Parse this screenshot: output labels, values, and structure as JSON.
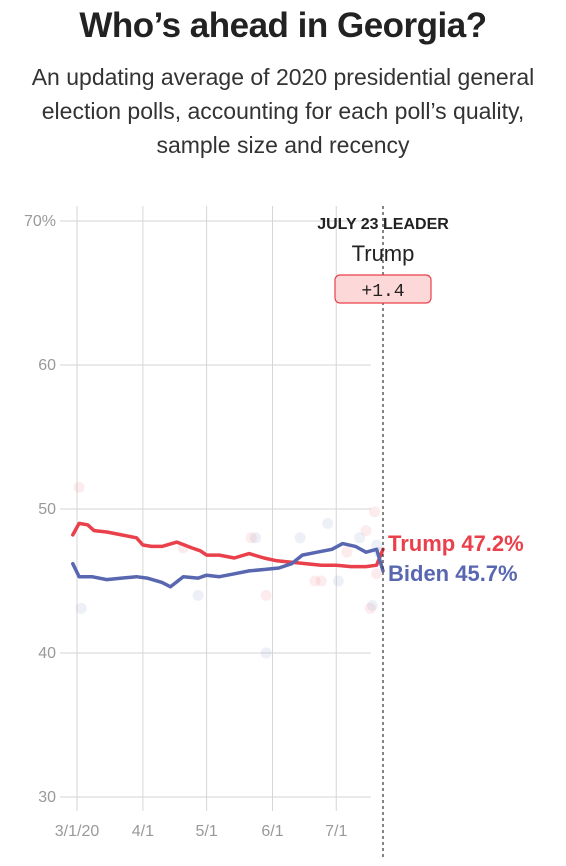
{
  "header": {
    "title": "Who’s ahead in Georgia?",
    "subtitle": "An updating average of 2020 presidential general election polls, accounting for each poll’s quality, sample size and recency"
  },
  "leader": {
    "heading": "JULY 23 LEADER",
    "name": "Trump",
    "margin": "+1.4"
  },
  "end_labels": {
    "trump": "Trump 47.2%",
    "biden": "Biden 45.7%"
  },
  "colors": {
    "trump": "#e9404b",
    "biden": "#5867b0",
    "grid": "#d6d6d6",
    "leader_box_fill": "#fdd8d8",
    "leader_box_stroke": "#e9404b"
  },
  "chart_data": {
    "type": "line",
    "title": "",
    "xlabel": "",
    "ylabel": "",
    "ylim": [
      30,
      70
    ],
    "y_ticks": [
      {
        "value": 70,
        "label": "70%"
      },
      {
        "value": 60,
        "label": "60"
      },
      {
        "value": 50,
        "label": "50"
      },
      {
        "value": 40,
        "label": "40"
      },
      {
        "value": 30,
        "label": "30"
      }
    ],
    "x_ticks": [
      {
        "date": "2020-03-01",
        "label": "3/1/20"
      },
      {
        "date": "2020-04-01",
        "label": "4/1"
      },
      {
        "date": "2020-05-01",
        "label": "5/1"
      },
      {
        "date": "2020-06-01",
        "label": "6/1"
      },
      {
        "date": "2020-07-01",
        "label": "7/1"
      }
    ],
    "xlim": [
      "2020-02-22",
      "2020-07-23"
    ],
    "marker_date": "2020-07-23",
    "grid": true,
    "series": [
      {
        "name": "Trump",
        "final_value": 47.2,
        "x": [
          "2020-02-28",
          "2020-03-02",
          "2020-03-06",
          "2020-03-09",
          "2020-03-15",
          "2020-03-22",
          "2020-03-29",
          "2020-04-01",
          "2020-04-05",
          "2020-04-10",
          "2020-04-17",
          "2020-04-24",
          "2020-04-28",
          "2020-05-01",
          "2020-05-07",
          "2020-05-14",
          "2020-05-21",
          "2020-05-28",
          "2020-06-03",
          "2020-06-10",
          "2020-06-17",
          "2020-06-24",
          "2020-07-01",
          "2020-07-08",
          "2020-07-15",
          "2020-07-20",
          "2020-07-23"
        ],
        "values": [
          48.2,
          49.0,
          48.9,
          48.5,
          48.4,
          48.2,
          48.0,
          47.5,
          47.4,
          47.4,
          47.7,
          47.3,
          47.1,
          46.8,
          46.8,
          46.6,
          46.9,
          46.6,
          46.4,
          46.3,
          46.2,
          46.1,
          46.1,
          46.0,
          46.0,
          46.1,
          47.2
        ]
      },
      {
        "name": "Biden",
        "final_value": 45.7,
        "x": [
          "2020-02-28",
          "2020-03-02",
          "2020-03-08",
          "2020-03-15",
          "2020-03-22",
          "2020-03-29",
          "2020-04-03",
          "2020-04-10",
          "2020-04-14",
          "2020-04-20",
          "2020-04-27",
          "2020-05-01",
          "2020-05-07",
          "2020-05-14",
          "2020-05-21",
          "2020-05-28",
          "2020-06-04",
          "2020-06-10",
          "2020-06-15",
          "2020-06-22",
          "2020-06-29",
          "2020-07-04",
          "2020-07-10",
          "2020-07-15",
          "2020-07-20",
          "2020-07-23"
        ],
        "values": [
          46.2,
          45.3,
          45.3,
          45.1,
          45.2,
          45.3,
          45.2,
          44.9,
          44.6,
          45.3,
          45.2,
          45.4,
          45.3,
          45.5,
          45.7,
          45.8,
          45.9,
          46.2,
          46.8,
          47.0,
          47.2,
          47.6,
          47.4,
          47.0,
          47.2,
          45.7
        ]
      }
    ],
    "polls": [
      {
        "candidate": "Trump",
        "x": "2020-03-02",
        "y": 51.5
      },
      {
        "candidate": "Biden",
        "x": "2020-03-03",
        "y": 43.1
      },
      {
        "candidate": "Trump",
        "x": "2020-04-20",
        "y": 47.3
      },
      {
        "candidate": "Biden",
        "x": "2020-04-27",
        "y": 44.0
      },
      {
        "candidate": "Trump",
        "x": "2020-05-22",
        "y": 48.0
      },
      {
        "candidate": "Biden",
        "x": "2020-05-24",
        "y": 48.0
      },
      {
        "candidate": "Trump",
        "x": "2020-05-29",
        "y": 44.0
      },
      {
        "candidate": "Biden",
        "x": "2020-05-29",
        "y": 40.0
      },
      {
        "candidate": "Biden",
        "x": "2020-06-14",
        "y": 48.0
      },
      {
        "candidate": "Trump",
        "x": "2020-06-21",
        "y": 45.0
      },
      {
        "candidate": "Trump",
        "x": "2020-06-24",
        "y": 45.0
      },
      {
        "candidate": "Biden",
        "x": "2020-06-27",
        "y": 49.0
      },
      {
        "candidate": "Biden",
        "x": "2020-07-02",
        "y": 45.0
      },
      {
        "candidate": "Trump",
        "x": "2020-07-06",
        "y": 47.0
      },
      {
        "candidate": "Biden",
        "x": "2020-07-12",
        "y": 48.0
      },
      {
        "candidate": "Trump",
        "x": "2020-07-15",
        "y": 48.5
      },
      {
        "candidate": "Trump",
        "x": "2020-07-17",
        "y": 43.1
      },
      {
        "candidate": "Biden",
        "x": "2020-07-18",
        "y": 43.3
      },
      {
        "candidate": "Trump",
        "x": "2020-07-19",
        "y": 49.8
      },
      {
        "candidate": "Trump",
        "x": "2020-07-20",
        "y": 45.5
      },
      {
        "candidate": "Biden",
        "x": "2020-07-20",
        "y": 47.5
      },
      {
        "candidate": "Biden",
        "x": "2020-07-21",
        "y": 47.0
      }
    ]
  }
}
